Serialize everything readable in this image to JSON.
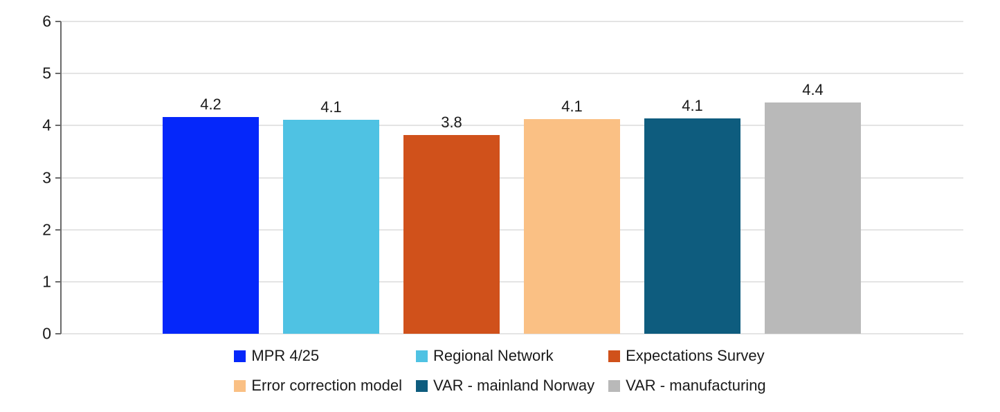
{
  "chart_data": {
    "type": "bar",
    "title": "",
    "xlabel": "",
    "ylabel": "",
    "ylim": [
      0,
      6
    ],
    "yticks": [
      "0",
      "1",
      "2",
      "3",
      "4",
      "5",
      "6"
    ],
    "grid": "on",
    "legend_position": "bottom",
    "axis_color": "#6a6a6a",
    "gridline_color": "#e4e4e4",
    "text_color": "#1a1a1a",
    "bars": [
      {
        "name": "MPR 4/25",
        "value": 4.17,
        "label": "4.2",
        "color": "#0527fa"
      },
      {
        "name": "Regional Network",
        "value": 4.11,
        "label": "4.1",
        "color": "#4fc2e3"
      },
      {
        "name": "Expectations Survey",
        "value": 3.82,
        "label": "3.8",
        "color": "#d0511b"
      },
      {
        "name": "Error correction model",
        "value": 4.12,
        "label": "4.1",
        "color": "#fac084"
      },
      {
        "name": "VAR - mainland Norway",
        "value": 4.14,
        "label": "4.1",
        "color": "#0e5c7e"
      },
      {
        "name": "VAR - manufacturing",
        "value": 4.45,
        "label": "4.4",
        "color": "#b9b9b9"
      }
    ],
    "legend_rows": [
      [
        "MPR 4/25",
        "Regional Network",
        "Expectations Survey"
      ],
      [
        "Error correction model",
        "VAR - mainland Norway",
        "VAR - manufacturing"
      ]
    ]
  }
}
